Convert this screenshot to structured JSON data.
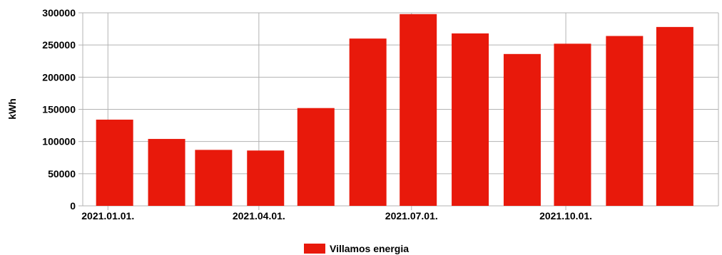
{
  "chart_data": {
    "type": "bar",
    "ylabel": "kWh",
    "ylim": [
      0,
      300000
    ],
    "y_ticks": [
      "0",
      "50000",
      "100000",
      "150000",
      "200000",
      "250000",
      "300000"
    ],
    "x_tick_labels": [
      "2021.01.01.",
      "2021.04.01.",
      "2021.07.01.",
      "2021.10.01."
    ],
    "x_axis": "date",
    "grid": true,
    "legend_position": "bottom",
    "series": [
      {
        "name": "Villamos energia",
        "color": "#e8190b",
        "points": [
          {
            "date": "2021-01-01",
            "value": 134000
          },
          {
            "date": "2021-02-01",
            "value": 104000
          },
          {
            "date": "2021-03-01",
            "value": 87000
          },
          {
            "date": "2021-04-01",
            "value": 86000
          },
          {
            "date": "2021-05-01",
            "value": 152000
          },
          {
            "date": "2021-06-01",
            "value": 260000
          },
          {
            "date": "2021-07-01",
            "value": 298000
          },
          {
            "date": "2021-08-01",
            "value": 268000
          },
          {
            "date": "2021-09-01",
            "value": 236000
          },
          {
            "date": "2021-10-01",
            "value": 252000
          },
          {
            "date": "2021-11-01",
            "value": 264000
          },
          {
            "date": "2021-12-01",
            "value": 278000
          }
        ]
      }
    ]
  }
}
